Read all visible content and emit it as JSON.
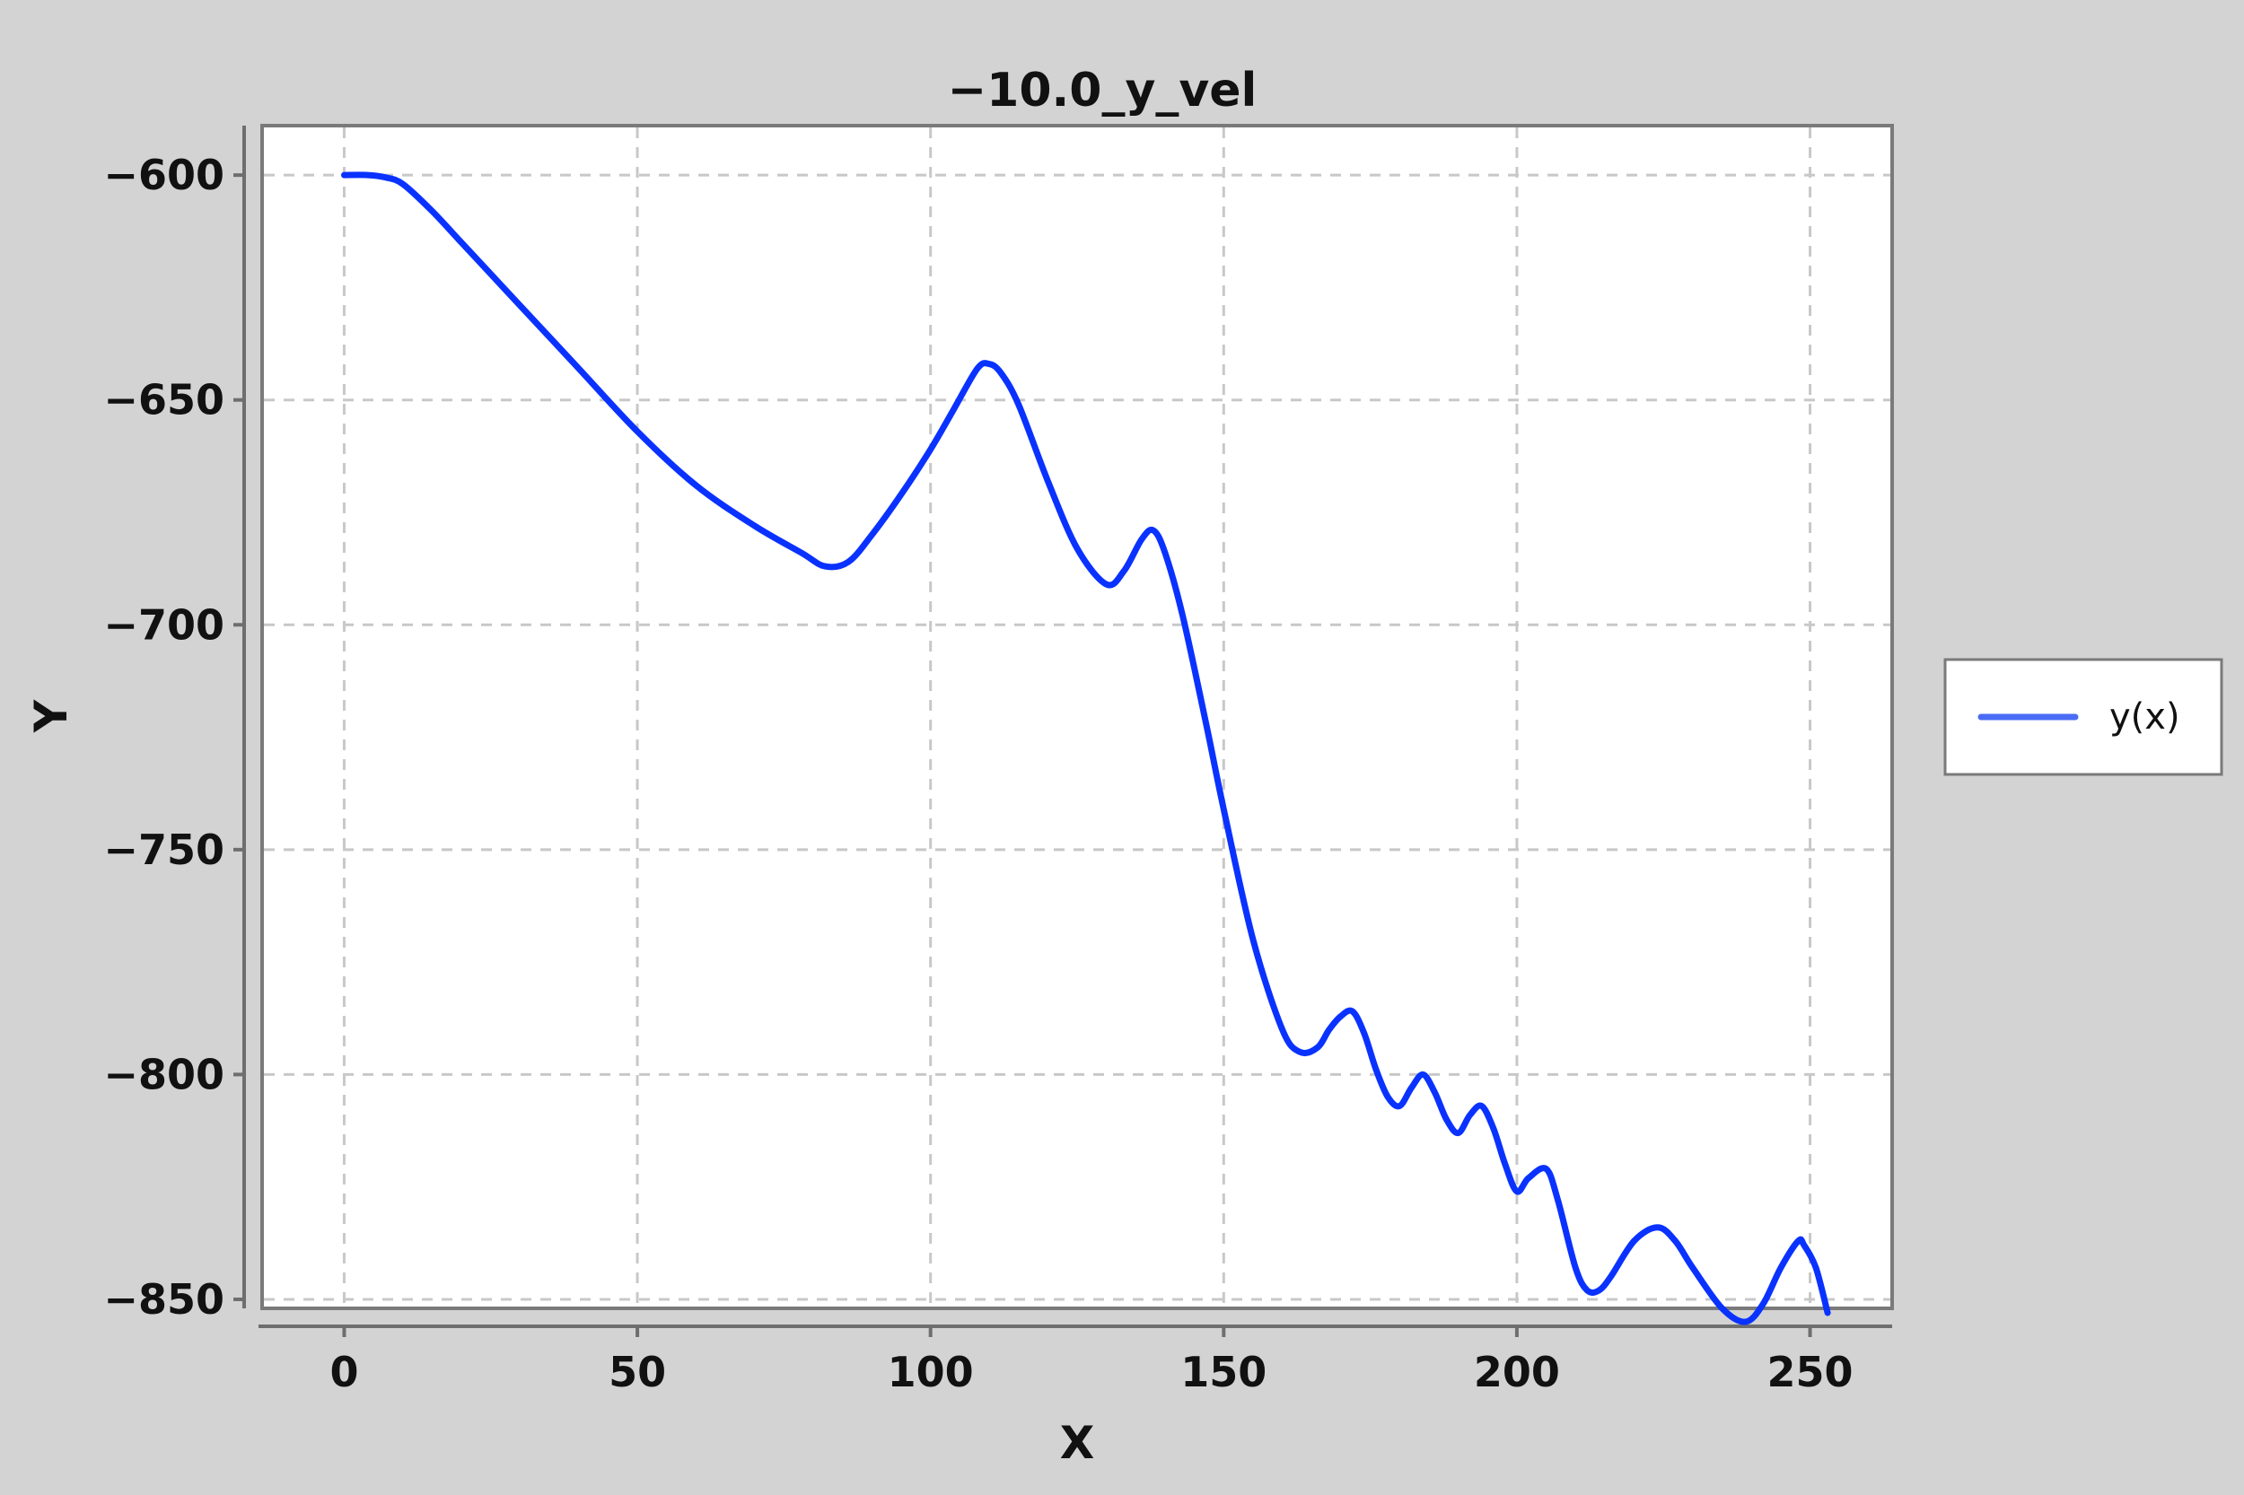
{
  "chart_data": {
    "type": "line",
    "title": "−10.0_y_vel",
    "xlabel": "X",
    "ylabel": "Y",
    "xlim": [
      -14,
      264
    ],
    "ylim": [
      -852,
      -589
    ],
    "x_ticks": [
      0,
      50,
      100,
      150,
      200,
      250
    ],
    "x_tick_labels": [
      "0",
      "50",
      "100",
      "150",
      "200",
      "250"
    ],
    "y_ticks": [
      -600,
      -650,
      -700,
      -750,
      -800,
      -850
    ],
    "y_tick_labels": [
      "−600",
      "−650",
      "−700",
      "−750",
      "−800",
      "−850"
    ],
    "grid": true,
    "legend_position": "right",
    "series": [
      {
        "name": "y(x)",
        "color": "#0a32ff",
        "legend_color": "#4a6cf5",
        "x": [
          0,
          4,
          7,
          10,
          15,
          20,
          25,
          30,
          40,
          50,
          60,
          70,
          78,
          82,
          86,
          90,
          95,
          100,
          104,
          108,
          110,
          112,
          115,
          120,
          125,
          130,
          133,
          136,
          138,
          140,
          143,
          147,
          150,
          155,
          160,
          163,
          166,
          168,
          170,
          172,
          174,
          176,
          178,
          180,
          182,
          184,
          186,
          188,
          190,
          192,
          194,
          196,
          198,
          200,
          202,
          205,
          207,
          210,
          212,
          214,
          216,
          220,
          224,
          227,
          230,
          235,
          239,
          242,
          245,
          248,
          249,
          251,
          253
        ],
        "y": [
          -600,
          -600,
          -600.5,
          -602,
          -608,
          -615,
          -622,
          -629,
          -643,
          -657,
          -669,
          -678,
          -684,
          -687,
          -686,
          -680,
          -671,
          -661,
          -652,
          -643,
          -642,
          -644,
          -651,
          -668,
          -683,
          -691,
          -688,
          -681,
          -679,
          -684,
          -698,
          -722,
          -741,
          -770,
          -790,
          -795,
          -794,
          -790,
          -787,
          -786,
          -791,
          -799,
          -805,
          -807,
          -803,
          -800,
          -804,
          -810,
          -813,
          -809,
          -807,
          -812,
          -820,
          -826,
          -823,
          -821,
          -828,
          -843,
          -848,
          -848,
          -845,
          -837,
          -834,
          -837,
          -843,
          -852,
          -855,
          -851,
          -843,
          -837,
          -838,
          -843,
          -853
        ]
      }
    ]
  }
}
